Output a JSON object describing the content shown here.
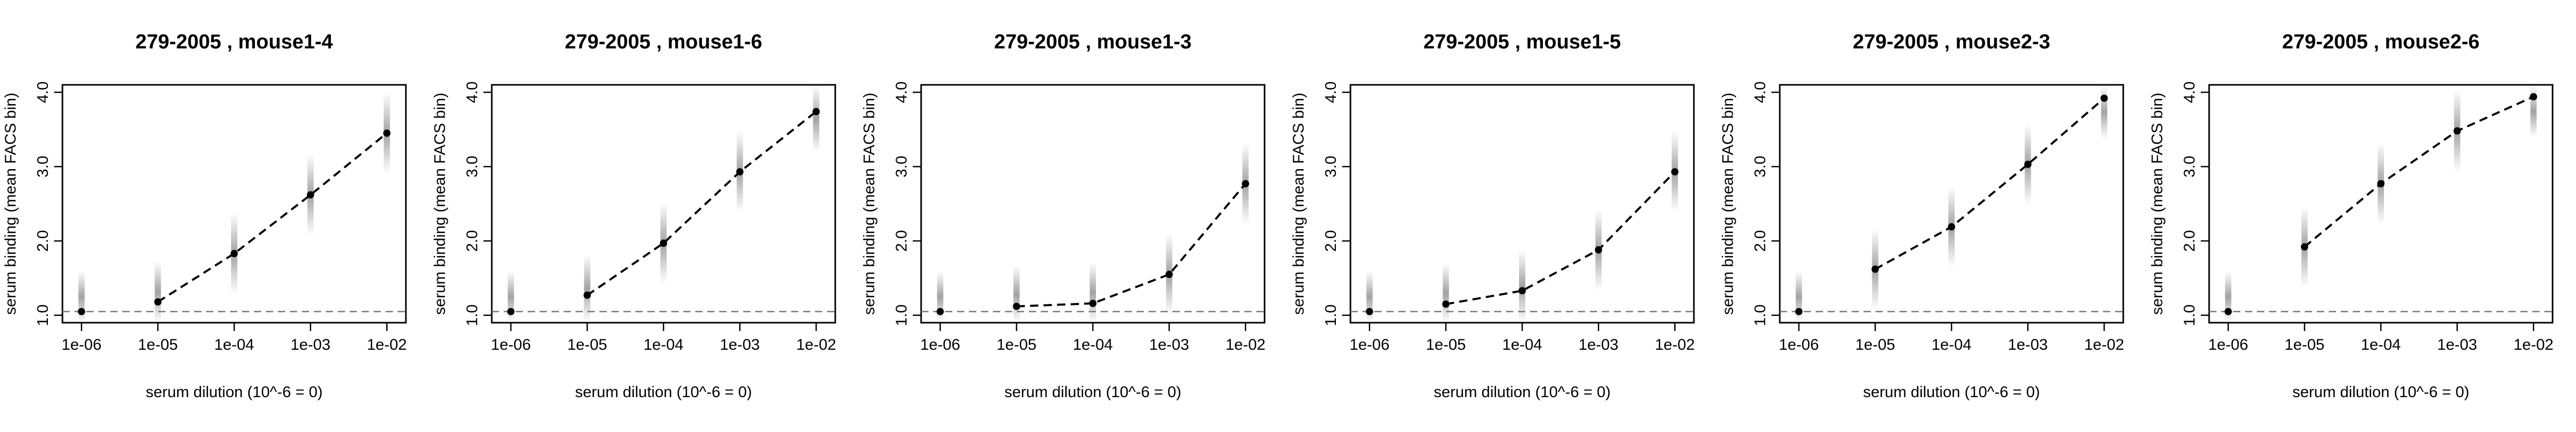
{
  "chart_data": [
    {
      "type": "line",
      "title": "279-2005 , mouse1-4",
      "xlabel": "serum dilution (10^-6 = 0)",
      "ylabel": "serum binding (mean FACS bin)",
      "x": [
        -6,
        -5,
        -4,
        -3,
        -2
      ],
      "xtick_labels": [
        "1e-06",
        "1e-05",
        "1e-04",
        "1e-03",
        "1e-02"
      ],
      "ytick_labels": [
        "1.0",
        "2.0",
        "3.0",
        "4.0"
      ],
      "ylim": [
        0.9,
        4.1
      ],
      "series": [
        {
          "values": [
            1.05,
            1.18,
            1.83,
            2.62,
            3.45
          ]
        }
      ],
      "baseline": 1.05
    },
    {
      "type": "line",
      "title": "279-2005 , mouse1-6",
      "xlabel": "serum dilution (10^-6 = 0)",
      "ylabel": "serum binding (mean FACS bin)",
      "x": [
        -6,
        -5,
        -4,
        -3,
        -2
      ],
      "xtick_labels": [
        "1e-06",
        "1e-05",
        "1e-04",
        "1e-03",
        "1e-02"
      ],
      "ytick_labels": [
        "1.0",
        "2.0",
        "3.0",
        "4.0"
      ],
      "ylim": [
        0.9,
        4.1
      ],
      "series": [
        {
          "values": [
            1.05,
            1.27,
            1.97,
            2.93,
            3.74
          ]
        }
      ],
      "baseline": 1.05
    },
    {
      "type": "line",
      "title": "279-2005 , mouse1-3",
      "xlabel": "serum dilution (10^-6 = 0)",
      "ylabel": "serum binding (mean FACS bin)",
      "x": [
        -6,
        -5,
        -4,
        -3,
        -2
      ],
      "xtick_labels": [
        "1e-06",
        "1e-05",
        "1e-04",
        "1e-03",
        "1e-02"
      ],
      "ytick_labels": [
        "1.0",
        "2.0",
        "3.0",
        "4.0"
      ],
      "ylim": [
        0.9,
        4.1
      ],
      "series": [
        {
          "values": [
            1.05,
            1.12,
            1.16,
            1.55,
            2.77
          ]
        }
      ],
      "baseline": 1.05
    },
    {
      "type": "line",
      "title": "279-2005 , mouse1-5",
      "xlabel": "serum dilution (10^-6 = 0)",
      "ylabel": "serum binding (mean FACS bin)",
      "x": [
        -6,
        -5,
        -4,
        -3,
        -2
      ],
      "xtick_labels": [
        "1e-06",
        "1e-05",
        "1e-04",
        "1e-03",
        "1e-02"
      ],
      "ytick_labels": [
        "1.0",
        "2.0",
        "3.0",
        "4.0"
      ],
      "ylim": [
        0.9,
        4.1
      ],
      "series": [
        {
          "values": [
            1.05,
            1.15,
            1.33,
            1.88,
            2.93
          ]
        }
      ],
      "baseline": 1.05
    },
    {
      "type": "line",
      "title": "279-2005 , mouse2-3",
      "xlabel": "serum dilution (10^-6 = 0)",
      "ylabel": "serum binding (mean FACS bin)",
      "x": [
        -6,
        -5,
        -4,
        -3,
        -2
      ],
      "xtick_labels": [
        "1e-06",
        "1e-05",
        "1e-04",
        "1e-03",
        "1e-02"
      ],
      "ytick_labels": [
        "1.0",
        "2.0",
        "3.0",
        "4.0"
      ],
      "ylim": [
        0.9,
        4.1
      ],
      "series": [
        {
          "values": [
            1.05,
            1.62,
            2.19,
            3.03,
            3.92
          ]
        }
      ],
      "baseline": 1.05
    },
    {
      "type": "line",
      "title": "279-2005 , mouse2-6",
      "xlabel": "serum dilution (10^-6 = 0)",
      "ylabel": "serum binding (mean FACS bin)",
      "x": [
        -6,
        -5,
        -4,
        -3,
        -2
      ],
      "xtick_labels": [
        "1e-06",
        "1e-05",
        "1e-04",
        "1e-03",
        "1e-02"
      ],
      "ytick_labels": [
        "1.0",
        "2.0",
        "3.0",
        "4.0"
      ],
      "ylim": [
        0.9,
        4.1
      ],
      "series": [
        {
          "values": [
            1.05,
            1.92,
            2.77,
            3.48,
            3.94
          ]
        }
      ],
      "baseline": 1.05
    }
  ]
}
